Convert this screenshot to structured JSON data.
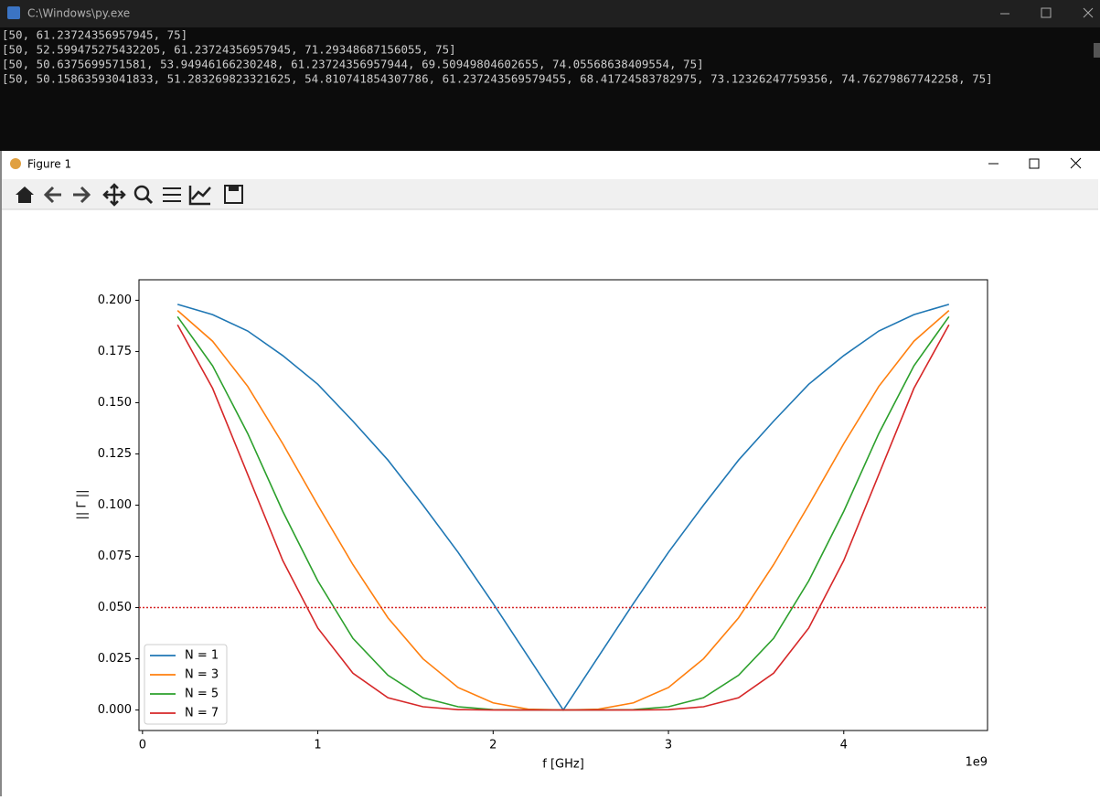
{
  "console": {
    "title": "C:\\Windows\\py.exe",
    "lines": [
      "[50, 61.23724356957945, 75]",
      "[50, 52.599475275432205, 61.23724356957945, 71.29348687156055, 75]",
      "[50, 50.6375699571581, 53.94946166230248, 61.23724356957944, 69.50949804602655, 74.05568638409554, 75]",
      "[50, 50.15863593041833, 51.283269823321625, 54.810741854307786, 61.237243569579455, 68.41724583782975, 73.12326247759356, 74.76279867742258, 75]"
    ]
  },
  "figure_window": {
    "title": "Figure 1"
  },
  "chart_data": {
    "type": "line",
    "x": [
      0.2,
      0.4,
      0.6,
      0.8,
      1.0,
      1.2,
      1.4,
      1.6,
      1.8,
      2.0,
      2.2,
      2.4,
      2.6,
      2.8,
      3.0,
      3.2,
      3.4,
      3.6,
      3.8,
      4.0,
      4.2,
      4.4,
      4.6
    ],
    "series": [
      {
        "name": "N = 1",
        "color": "#1f77b4",
        "values": [
          0.198,
          0.193,
          0.185,
          0.173,
          0.159,
          0.141,
          0.122,
          0.1,
          0.077,
          0.052,
          0.026,
          0,
          0.026,
          0.052,
          0.077,
          0.1,
          0.122,
          0.141,
          0.159,
          0.173,
          0.185,
          0.193,
          0.198
        ]
      },
      {
        "name": "N = 3",
        "color": "#ff7f0e",
        "values": [
          0.195,
          0.18,
          0.158,
          0.13,
          0.1,
          0.071,
          0.045,
          0.025,
          0.011,
          0.0035,
          0.0004,
          0,
          0.0004,
          0.0035,
          0.011,
          0.025,
          0.045,
          0.071,
          0.1,
          0.13,
          0.158,
          0.18,
          0.195
        ]
      },
      {
        "name": "N = 5",
        "color": "#2ca02c",
        "values": [
          0.192,
          0.168,
          0.135,
          0.097,
          0.063,
          0.035,
          0.017,
          0.006,
          0.0016,
          0.0002,
          0,
          0,
          0,
          0.0002,
          0.0016,
          0.006,
          0.017,
          0.035,
          0.063,
          0.097,
          0.135,
          0.168,
          0.192
        ]
      },
      {
        "name": "N = 7",
        "color": "#d62728",
        "values": [
          0.188,
          0.157,
          0.115,
          0.073,
          0.04,
          0.018,
          0.006,
          0.0016,
          0.0002,
          0,
          0,
          0,
          0,
          0,
          0.0002,
          0.0016,
          0.006,
          0.018,
          0.04,
          0.073,
          0.115,
          0.157,
          0.188
        ]
      }
    ],
    "xlim": [
      -0.02,
      4.82
    ],
    "xticks": [
      0,
      1,
      2,
      3,
      4
    ],
    "x_offset_label": "1e9",
    "ylim": [
      -0.01,
      0.21
    ],
    "yticks": [
      {
        "value": 0,
        "label": "0.000"
      },
      {
        "value": 0.025,
        "label": "0.025"
      },
      {
        "value": 0.05,
        "label": "0.050"
      },
      {
        "value": 0.075,
        "label": "0.075"
      },
      {
        "value": 0.1,
        "label": "0.100"
      },
      {
        "value": 0.125,
        "label": "0.125"
      },
      {
        "value": 0.15,
        "label": "0.150"
      },
      {
        "value": 0.175,
        "label": "0.175"
      },
      {
        "value": 0.2,
        "label": "0.200"
      }
    ],
    "xlabel": "f [GHz]",
    "ylabel": "|| Γ ||",
    "threshold": {
      "value": 0.05,
      "color": "#d62728",
      "style": "dotted"
    },
    "legend": "lower left"
  }
}
